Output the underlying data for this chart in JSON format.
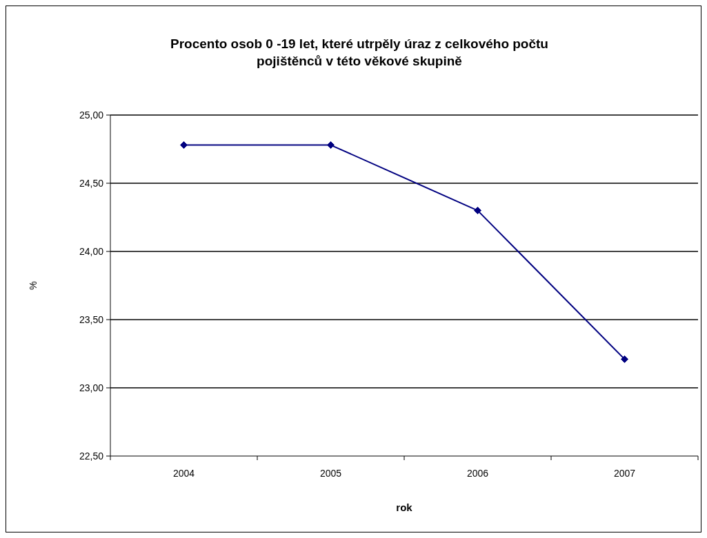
{
  "chart_data": {
    "type": "line",
    "title": "Procento osob 0 -19 let, které utrpěly úraz z celkového počtu\npojištěnců v této věkové skupině",
    "xlabel": "rok",
    "ylabel": "%",
    "categories": [
      "2004",
      "2005",
      "2006",
      "2007"
    ],
    "series": [
      {
        "color": "#000080",
        "values": [
          24.78,
          24.78,
          24.3,
          23.21
        ]
      }
    ],
    "ylim": [
      22.5,
      25
    ],
    "yticks": [
      {
        "value": 22.5,
        "label": "22,50"
      },
      {
        "value": 23,
        "label": "23,00"
      },
      {
        "value": 23.5,
        "label": "23,50"
      },
      {
        "value": 24,
        "label": "24,00"
      },
      {
        "value": 24.5,
        "label": "24,50"
      },
      {
        "value": 25,
        "label": "25,00"
      }
    ],
    "grid": "y",
    "marker": "diamond",
    "line_style": "solid"
  }
}
